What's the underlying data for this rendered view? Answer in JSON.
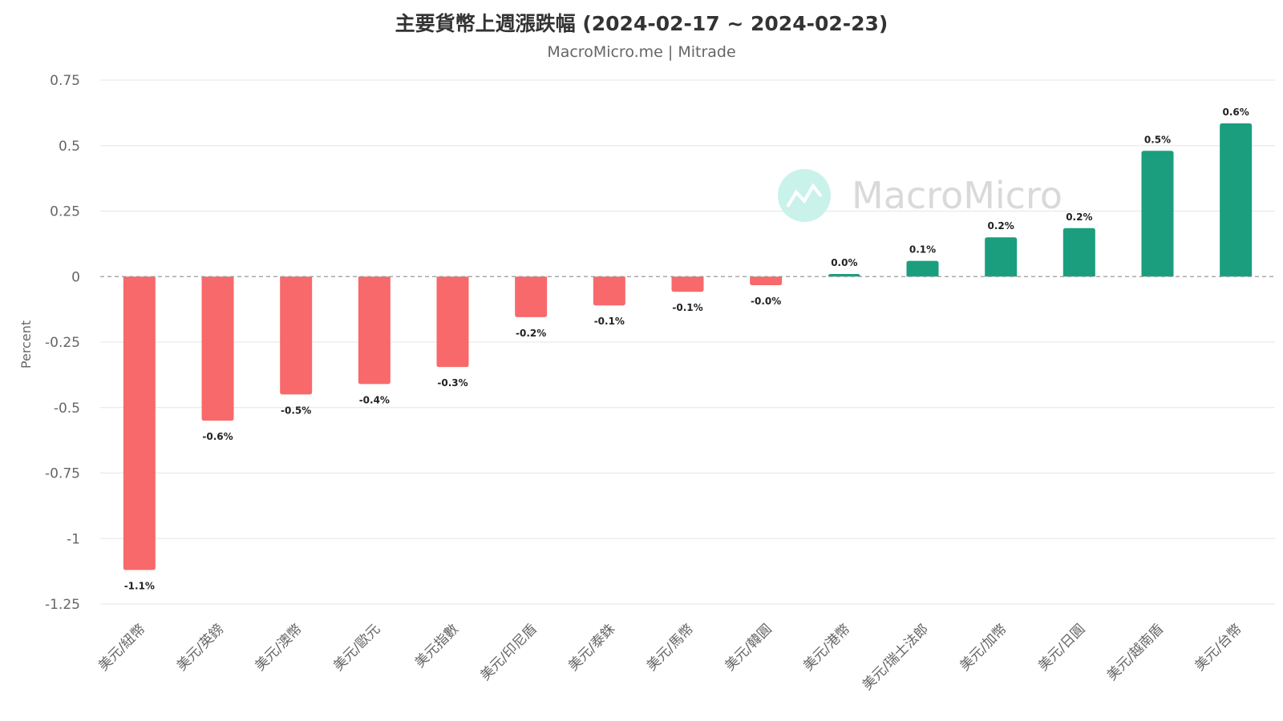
{
  "chart_data": {
    "type": "bar",
    "title": "主要貨幣上週漲跌幅 (2024-02-17 ~ 2024-02-23)",
    "subtitle": "MacroMicro.me | Mitrade",
    "ylabel": "Percent",
    "xlabel": "",
    "ylim": [
      -1.25,
      0.75
    ],
    "yticks": [
      {
        "value": 0.75,
        "label": "0.75"
      },
      {
        "value": 0.5,
        "label": "0.5"
      },
      {
        "value": 0.25,
        "label": "0.25"
      },
      {
        "value": 0,
        "label": "0"
      },
      {
        "value": -0.25,
        "label": "-0.25"
      },
      {
        "value": -0.5,
        "label": "-0.5"
      },
      {
        "value": -0.75,
        "label": "-0.75"
      },
      {
        "value": -1,
        "label": "-1"
      },
      {
        "value": -1.25,
        "label": "-1.25"
      }
    ],
    "grid": true,
    "legend": "none",
    "colors": {
      "negative": "#f8696b",
      "positive": "#1a9e7e",
      "grid": "#e6e6e6",
      "zero_line": "#999999"
    },
    "watermark": "MacroMicro",
    "categories": [
      "美元/紐幣",
      "美元/英鎊",
      "美元/澳幣",
      "美元/歐元",
      "美元指數",
      "美元/印尼盾",
      "美元/泰銖",
      "美元/馬幣",
      "美元/韓圓",
      "美元/港幣",
      "美元/瑞士法郎",
      "美元/加幣",
      "美元/日圓",
      "美元/越南盾",
      "美元/台幣"
    ],
    "values": [
      -1.12,
      -0.55,
      -0.45,
      -0.41,
      -0.345,
      -0.155,
      -0.11,
      -0.058,
      -0.033,
      0.01,
      0.06,
      0.15,
      0.185,
      0.48,
      0.585
    ],
    "data_labels": [
      "-1.1%",
      "-0.6%",
      "-0.5%",
      "-0.4%",
      "-0.3%",
      "-0.2%",
      "-0.1%",
      "-0.1%",
      "-0.0%",
      "0.0%",
      "0.1%",
      "0.2%",
      "0.2%",
      "0.5%",
      "0.6%"
    ]
  }
}
